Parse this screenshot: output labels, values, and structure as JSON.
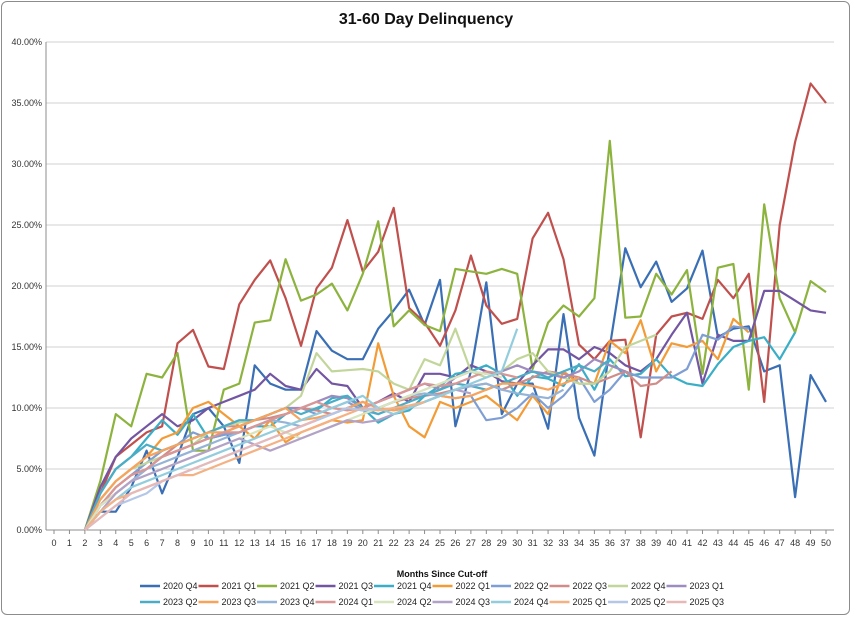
{
  "chart_data": {
    "type": "line",
    "title": "31-60 Day Delinquency",
    "xlabel": "Months Since Cut-off",
    "ylabel": "",
    "x": [
      0,
      1,
      2,
      3,
      4,
      5,
      6,
      7,
      8,
      9,
      10,
      11,
      12,
      13,
      14,
      15,
      16,
      17,
      18,
      19,
      20,
      21,
      22,
      23,
      24,
      25,
      26,
      27,
      28,
      29,
      30,
      31,
      32,
      33,
      34,
      35,
      36,
      37,
      38,
      39,
      40,
      41,
      42,
      43,
      44,
      45,
      46,
      47,
      48,
      49,
      50
    ],
    "y_ticks": [
      "0.00%",
      "5.00%",
      "10.00%",
      "15.00%",
      "20.00%",
      "25.00%",
      "30.00%",
      "35.00%",
      "40.00%"
    ],
    "ylim": [
      0,
      0.4
    ],
    "grid": true,
    "legend_position": "bottom",
    "series": [
      {
        "name": "2020 Q4",
        "color": "#3a6fb5",
        "values": [
          null,
          null,
          0,
          0.015,
          0.015,
          0.035,
          0.065,
          0.03,
          0.06,
          0.095,
          0.1,
          0.085,
          0.055,
          0.135,
          0.12,
          0.115,
          0.115,
          0.163,
          0.147,
          0.14,
          0.14,
          0.165,
          0.18,
          0.197,
          0.168,
          0.205,
          0.085,
          0.13,
          0.203,
          0.095,
          0.12,
          0.12,
          0.083,
          0.177,
          0.092,
          0.061,
          0.15,
          0.231,
          0.199,
          0.22,
          0.187,
          0.198,
          0.229,
          0.158,
          0.165,
          0.167,
          0.13,
          0.135,
          0.027,
          0.127,
          0.105
        ]
      },
      {
        "name": "2021 Q1",
        "color": "#c0504d",
        "values": [
          null,
          null,
          0,
          0.03,
          0.06,
          0.07,
          0.08,
          0.085,
          0.153,
          0.164,
          0.134,
          0.132,
          0.185,
          0.205,
          0.221,
          0.19,
          0.151,
          0.198,
          0.215,
          0.254,
          0.212,
          0.228,
          0.264,
          0.182,
          0.17,
          0.151,
          0.18,
          0.225,
          0.184,
          0.169,
          0.173,
          0.239,
          0.26,
          0.222,
          0.152,
          0.14,
          0.155,
          0.156,
          0.076,
          0.16,
          0.175,
          0.178,
          0.173,
          0.205,
          0.19,
          0.21,
          0.105,
          0.25,
          0.318,
          0.366,
          0.35
        ]
      },
      {
        "name": "2021 Q2",
        "color": "#8db33f",
        "values": [
          null,
          null,
          0,
          0.04,
          0.095,
          0.085,
          0.128,
          0.125,
          0.145,
          0.065,
          0.065,
          0.115,
          0.12,
          0.17,
          0.172,
          0.222,
          0.188,
          0.193,
          0.202,
          0.18,
          0.21,
          0.253,
          0.167,
          0.18,
          0.168,
          0.163,
          0.214,
          0.212,
          0.21,
          0.214,
          0.21,
          0.132,
          0.17,
          0.184,
          0.175,
          0.19,
          0.319,
          0.174,
          0.175,
          0.21,
          0.193,
          0.213,
          0.128,
          0.215,
          0.218,
          0.115,
          0.267,
          0.19,
          0.162,
          0.204,
          0.195
        ]
      },
      {
        "name": "2021 Q3",
        "color": "#7356a2",
        "values": [
          null,
          null,
          0,
          0.035,
          0.06,
          0.075,
          0.085,
          0.095,
          0.085,
          0.09,
          0.1,
          0.105,
          0.11,
          0.115,
          0.128,
          0.118,
          0.115,
          0.132,
          0.12,
          0.118,
          0.1,
          0.105,
          0.112,
          0.105,
          0.128,
          0.128,
          0.125,
          0.135,
          0.13,
          0.122,
          0.12,
          0.135,
          0.148,
          0.148,
          0.14,
          0.15,
          0.145,
          0.135,
          0.13,
          0.14,
          0.16,
          0.178,
          0.12,
          0.16,
          0.155,
          0.155,
          0.196,
          0.196,
          0.188,
          0.18,
          0.178
        ]
      },
      {
        "name": "2021 Q4",
        "color": "#3aaec6",
        "values": [
          null,
          null,
          0,
          0.03,
          0.05,
          0.06,
          0.075,
          0.09,
          0.078,
          0.095,
          0.075,
          0.078,
          0.08,
          0.085,
          0.085,
          0.095,
          0.1,
          0.098,
          0.108,
          0.11,
          0.1,
          0.088,
          0.095,
          0.098,
          0.11,
          0.118,
          0.128,
          0.13,
          0.135,
          0.128,
          0.11,
          0.126,
          0.124,
          0.118,
          0.136,
          0.115,
          0.14,
          0.126,
          0.128,
          0.14,
          0.126,
          0.12,
          0.118,
          0.136,
          0.15,
          0.155,
          0.158,
          0.14,
          0.162,
          null,
          null
        ]
      },
      {
        "name": "2022 Q1",
        "color": "#f39b36",
        "values": [
          null,
          null,
          0,
          0.025,
          0.04,
          0.05,
          0.06,
          0.075,
          0.08,
          0.1,
          0.105,
          0.095,
          0.085,
          0.075,
          0.09,
          0.072,
          0.08,
          0.085,
          0.09,
          0.088,
          0.09,
          0.153,
          0.11,
          0.085,
          0.076,
          0.105,
          0.1,
          0.105,
          0.11,
          0.1,
          0.09,
          0.11,
          0.095,
          0.13,
          0.12,
          0.12,
          0.155,
          0.145,
          0.172,
          0.13,
          0.153,
          0.15,
          0.155,
          0.14,
          0.173,
          0.162,
          null,
          null,
          null,
          null,
          null
        ]
      },
      {
        "name": "2022 Q2",
        "color": "#7f9fd4",
        "values": [
          null,
          null,
          0,
          0.02,
          0.035,
          0.045,
          0.055,
          0.065,
          0.07,
          0.08,
          0.075,
          0.078,
          0.08,
          0.085,
          0.09,
          0.095,
          0.1,
          0.095,
          0.1,
          0.105,
          0.098,
          0.095,
          0.1,
          0.1,
          0.105,
          0.11,
          0.108,
          0.11,
          0.09,
          0.092,
          0.1,
          0.112,
          0.1,
          0.11,
          0.125,
          0.105,
          0.115,
          0.13,
          0.125,
          0.125,
          0.125,
          0.132,
          0.16,
          0.156,
          0.167,
          0.165,
          null,
          null,
          null,
          null,
          null
        ]
      },
      {
        "name": "2022 Q3",
        "color": "#d08c88",
        "values": [
          null,
          null,
          0,
          0.02,
          0.035,
          0.045,
          0.05,
          0.06,
          0.07,
          0.075,
          0.08,
          0.085,
          0.085,
          0.09,
          0.092,
          0.095,
          0.1,
          0.098,
          0.095,
          0.1,
          0.105,
          0.1,
          0.105,
          0.108,
          0.11,
          0.112,
          0.115,
          0.118,
          0.12,
          0.115,
          0.12,
          0.125,
          0.13,
          0.128,
          0.125,
          0.12,
          0.125,
          0.13,
          0.118,
          0.12,
          0.13,
          null,
          null,
          null,
          null,
          null,
          null,
          null,
          null,
          null,
          null
        ]
      },
      {
        "name": "2022 Q4",
        "color": "#c2d69b",
        "values": [
          null,
          null,
          0,
          0.025,
          0.04,
          0.05,
          0.055,
          0.06,
          0.065,
          0.07,
          0.08,
          0.085,
          0.088,
          0.09,
          0.095,
          0.1,
          0.11,
          0.145,
          0.13,
          0.131,
          0.132,
          0.13,
          0.12,
          0.115,
          0.14,
          0.135,
          0.165,
          0.13,
          0.125,
          0.13,
          0.14,
          0.145,
          0.13,
          0.125,
          0.12,
          0.12,
          0.13,
          0.15,
          0.155,
          0.16,
          null,
          null,
          null,
          null,
          null,
          null,
          null,
          null,
          null,
          null,
          null
        ]
      },
      {
        "name": "2023 Q1",
        "color": "#9e8bbf",
        "values": [
          null,
          null,
          0,
          0.02,
          0.03,
          0.04,
          0.05,
          0.06,
          0.065,
          0.07,
          0.075,
          0.08,
          0.085,
          0.09,
          0.095,
          0.1,
          0.1,
          0.105,
          0.11,
          0.108,
          0.1,
          0.105,
          0.11,
          0.115,
          0.12,
          0.115,
          0.125,
          0.13,
          0.128,
          0.13,
          0.135,
          0.13,
          0.128,
          0.125,
          0.13,
          0.14,
          0.135,
          0.13,
          null,
          null,
          null,
          null,
          null,
          null,
          null,
          null,
          null,
          null,
          null,
          null,
          null
        ]
      },
      {
        "name": "2023 Q2",
        "color": "#4bacc6",
        "values": [
          null,
          null,
          0,
          0.03,
          0.05,
          0.06,
          0.07,
          0.065,
          0.07,
          0.075,
          0.08,
          0.085,
          0.09,
          0.09,
          0.095,
          0.1,
          0.095,
          0.1,
          0.105,
          0.11,
          0.1,
          0.095,
          0.1,
          0.105,
          0.11,
          0.115,
          0.12,
          0.118,
          0.115,
          0.12,
          0.125,
          0.13,
          0.125,
          0.13,
          0.135,
          0.13,
          0.14,
          null,
          null,
          null,
          null,
          null,
          null,
          null,
          null,
          null,
          null,
          null,
          null,
          null,
          null
        ]
      },
      {
        "name": "2023 Q3",
        "color": "#f7a35c",
        "values": [
          null,
          null,
          0,
          0.025,
          0.04,
          0.05,
          0.06,
          0.065,
          0.07,
          0.075,
          0.08,
          0.08,
          0.085,
          0.09,
          0.095,
          0.1,
          0.09,
          0.092,
          0.095,
          0.1,
          0.105,
          0.1,
          0.098,
          0.1,
          0.105,
          0.11,
          0.108,
          0.11,
          0.115,
          0.12,
          0.12,
          0.118,
          0.115,
          0.12,
          0.125,
          null,
          null,
          null,
          null,
          null,
          null,
          null,
          null,
          null,
          null,
          null,
          null,
          null,
          null,
          null,
          null
        ]
      },
      {
        "name": "2023 Q4",
        "color": "#95b3d7",
        "values": [
          null,
          null,
          0,
          0.02,
          0.03,
          0.04,
          0.05,
          0.055,
          0.06,
          0.065,
          0.07,
          0.075,
          0.08,
          0.085,
          0.09,
          0.088,
          0.085,
          0.09,
          0.095,
          0.1,
          0.098,
          0.1,
          0.105,
          0.11,
          0.112,
          0.11,
          0.115,
          0.118,
          0.12,
          0.115,
          0.112,
          0.11,
          0.108,
          0.115,
          null,
          null,
          null,
          null,
          null,
          null,
          null,
          null,
          null,
          null,
          null,
          null,
          null,
          null,
          null,
          null,
          null
        ]
      },
      {
        "name": "2024 Q1",
        "color": "#d99694",
        "values": [
          null,
          null,
          0,
          0.02,
          0.035,
          0.045,
          0.05,
          0.06,
          0.065,
          0.07,
          0.075,
          0.08,
          0.08,
          0.085,
          0.09,
          0.095,
          0.1,
          0.105,
          0.1,
          0.098,
          0.1,
          0.105,
          0.11,
          0.115,
          0.12,
          0.118,
          0.12,
          0.125,
          0.13,
          0.128,
          0.125,
          null,
          null,
          null,
          null,
          null,
          null,
          null,
          null,
          null,
          null,
          null,
          null,
          null,
          null,
          null,
          null,
          null,
          null,
          null,
          null
        ]
      },
      {
        "name": "2024 Q2",
        "color": "#d7e4bd",
        "values": [
          null,
          null,
          0,
          0.02,
          0.03,
          0.04,
          0.045,
          0.05,
          0.055,
          0.06,
          0.065,
          0.07,
          0.075,
          0.08,
          0.085,
          0.08,
          0.075,
          0.08,
          0.085,
          0.09,
          0.095,
          0.1,
          0.105,
          0.11,
          0.115,
          0.12,
          0.125,
          0.13,
          0.128,
          0.125,
          null,
          null,
          null,
          null,
          null,
          null,
          null,
          null,
          null,
          null,
          null,
          null,
          null,
          null,
          null,
          null,
          null,
          null,
          null,
          null,
          null
        ]
      },
      {
        "name": "2024 Q3",
        "color": "#b3a2c7",
        "values": [
          null,
          null,
          0,
          0.015,
          0.03,
          0.04,
          0.045,
          0.05,
          0.055,
          0.06,
          0.065,
          0.07,
          0.075,
          0.07,
          0.065,
          0.07,
          0.075,
          0.08,
          0.085,
          0.09,
          0.088,
          0.09,
          0.095,
          0.1,
          0.105,
          0.11,
          0.115,
          0.112,
          null,
          null,
          null,
          null,
          null,
          null,
          null,
          null,
          null,
          null,
          null,
          null,
          null,
          null,
          null,
          null,
          null,
          null,
          null,
          null,
          null,
          null,
          null
        ]
      },
      {
        "name": "2024 Q4",
        "color": "#93cddd",
        "values": [
          null,
          null,
          0,
          0.015,
          0.025,
          0.035,
          0.04,
          0.045,
          0.05,
          0.055,
          0.06,
          0.065,
          0.07,
          0.075,
          0.08,
          0.085,
          0.09,
          0.095,
          0.1,
          0.105,
          0.11,
          0.1,
          0.095,
          0.1,
          0.105,
          0.11,
          0.115,
          0.12,
          0.125,
          0.13,
          0.165,
          null,
          null,
          null,
          null,
          null,
          null,
          null,
          null,
          null,
          null,
          null,
          null,
          null,
          null,
          null,
          null,
          null,
          null,
          null,
          null
        ]
      },
      {
        "name": "2025 Q1",
        "color": "#f4b183",
        "values": [
          null,
          null,
          0,
          0.015,
          0.025,
          0.03,
          0.035,
          0.04,
          0.045,
          0.045,
          0.05,
          0.055,
          0.06,
          0.065,
          0.07,
          0.075,
          0.08,
          0.085,
          0.09,
          0.095,
          0.1,
          0.098,
          0.1,
          0.102,
          0.105,
          null,
          null,
          null,
          null,
          null,
          null,
          null,
          null,
          null,
          null,
          null,
          null,
          null,
          null,
          null,
          null,
          null,
          null,
          null,
          null,
          null,
          null,
          null,
          null,
          null,
          null
        ]
      },
      {
        "name": "2025 Q2",
        "color": "#b4c7e7",
        "values": [
          null,
          null,
          0,
          0.01,
          0.02,
          0.025,
          0.03,
          0.04,
          0.045,
          0.05,
          0.055,
          0.06,
          0.065,
          0.07,
          0.075,
          0.08,
          0.085,
          0.09,
          0.095,
          0.1,
          0.098,
          0.1,
          null,
          null,
          null,
          null,
          null,
          null,
          null,
          null,
          null,
          null,
          null,
          null,
          null,
          null,
          null,
          null,
          null,
          null,
          null,
          null,
          null,
          null,
          null,
          null,
          null,
          null,
          null,
          null,
          null
        ]
      },
      {
        "name": "2025 Q3",
        "color": "#e6b9b8",
        "values": [
          null,
          null,
          0,
          0.01,
          0.02,
          0.03,
          0.035,
          0.04,
          0.045,
          0.05,
          0.055,
          0.06,
          0.065,
          0.07,
          0.075,
          0.08,
          0.085,
          0.09,
          null,
          null,
          null,
          null,
          null,
          null,
          null,
          null,
          null,
          null,
          null,
          null,
          null,
          null,
          null,
          null,
          null,
          null,
          null,
          null,
          null,
          null,
          null,
          null,
          null,
          null,
          null,
          null,
          null,
          null,
          null,
          null,
          null
        ]
      }
    ]
  }
}
